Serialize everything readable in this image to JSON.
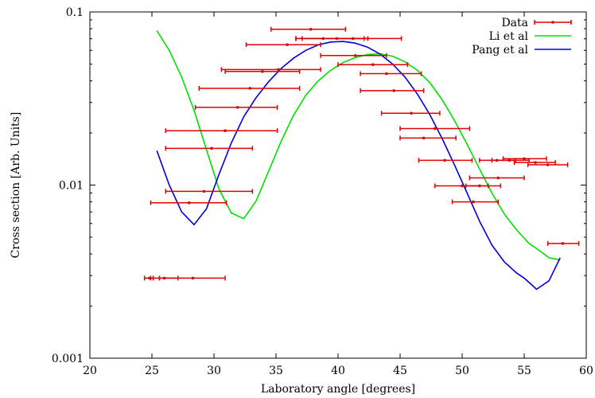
{
  "chart_data": {
    "type": "scatter",
    "title": "",
    "xlabel": "Laboratory angle [degrees]",
    "ylabel": "Cross section [Arb. Units]",
    "xlim": [
      20,
      60
    ],
    "ylim": [
      0.001,
      0.1
    ],
    "yscale": "log",
    "grid": false,
    "legend_position": "top-right",
    "xticks": [
      20,
      25,
      30,
      35,
      40,
      45,
      50,
      55,
      60
    ],
    "xtick_labels": [
      "20",
      "25",
      "30",
      "35",
      "40",
      "45",
      "50",
      "55",
      "60"
    ],
    "yticks": [
      0.001,
      0.01,
      0.1
    ],
    "ytick_labels": [
      "0.001",
      "0.01",
      "0.1"
    ],
    "series": [
      {
        "name": "Data",
        "kind": "errorbar-x",
        "color": "#e00000",
        "points": [
          {
            "x": 24.8,
            "y": 0.0029,
            "xmin": 24.4,
            "xmax": 25.1
          },
          {
            "x": 26.0,
            "y": 0.0029,
            "xmin": 24.9,
            "xmax": 27.1
          },
          {
            "x": 28.3,
            "y": 0.0029,
            "xmin": 25.6,
            "xmax": 30.9
          },
          {
            "x": 28.0,
            "y": 0.0079,
            "xmin": 24.9,
            "xmax": 31.0
          },
          {
            "x": 29.2,
            "y": 0.0092,
            "xmin": 26.1,
            "xmax": 33.1
          },
          {
            "x": 29.8,
            "y": 0.0163,
            "xmin": 26.1,
            "xmax": 33.1
          },
          {
            "x": 30.9,
            "y": 0.0206,
            "xmin": 26.1,
            "xmax": 35.1
          },
          {
            "x": 31.9,
            "y": 0.0281,
            "xmin": 28.5,
            "xmax": 35.1
          },
          {
            "x": 32.9,
            "y": 0.0362,
            "xmin": 28.8,
            "xmax": 36.9
          },
          {
            "x": 33.9,
            "y": 0.0453,
            "xmin": 30.9,
            "xmax": 36.9
          },
          {
            "x": 35.2,
            "y": 0.0465,
            "xmin": 30.6,
            "xmax": 38.6
          },
          {
            "x": 35.9,
            "y": 0.0647,
            "xmin": 32.6,
            "xmax": 38.6
          },
          {
            "x": 37.8,
            "y": 0.0794,
            "xmin": 34.6,
            "xmax": 40.6
          },
          {
            "x": 38.8,
            "y": 0.0702,
            "xmin": 36.6,
            "xmax": 42.1
          },
          {
            "x": 39.9,
            "y": 0.0702,
            "xmin": 36.6,
            "xmax": 42.4
          },
          {
            "x": 41.2,
            "y": 0.0702,
            "xmin": 37.1,
            "xmax": 45.1
          },
          {
            "x": 41.4,
            "y": 0.056,
            "xmin": 38.6,
            "xmax": 43.9
          },
          {
            "x": 42.8,
            "y": 0.0496,
            "xmin": 40.0,
            "xmax": 45.6
          },
          {
            "x": 43.9,
            "y": 0.044,
            "xmin": 41.8,
            "xmax": 46.7
          },
          {
            "x": 44.5,
            "y": 0.0351,
            "xmin": 41.8,
            "xmax": 46.9
          },
          {
            "x": 45.9,
            "y": 0.026,
            "xmin": 43.5,
            "xmax": 48.2
          },
          {
            "x": 47.8,
            "y": 0.0212,
            "xmin": 45.0,
            "xmax": 50.6
          },
          {
            "x": 46.9,
            "y": 0.0187,
            "xmin": 45.0,
            "xmax": 49.5
          },
          {
            "x": 48.6,
            "y": 0.0139,
            "xmin": 46.5,
            "xmax": 50.8
          },
          {
            "x": 52.8,
            "y": 0.0139,
            "xmin": 51.4,
            "xmax": 54.3
          },
          {
            "x": 53.8,
            "y": 0.0139,
            "xmin": 52.4,
            "xmax": 55.4
          },
          {
            "x": 55.0,
            "y": 0.0142,
            "xmin": 53.3,
            "xmax": 56.8
          },
          {
            "x": 56.9,
            "y": 0.0131,
            "xmin": 55.3,
            "xmax": 58.5
          },
          {
            "x": 55.9,
            "y": 0.0135,
            "xmin": 54.2,
            "xmax": 57.5
          },
          {
            "x": 52.9,
            "y": 0.011,
            "xmin": 50.6,
            "xmax": 55.0
          },
          {
            "x": 51.4,
            "y": 0.0099,
            "xmin": 50.3,
            "xmax": 53.1
          },
          {
            "x": 50.0,
            "y": 0.0099,
            "xmin": 47.8,
            "xmax": 52.1
          },
          {
            "x": 50.9,
            "y": 0.008,
            "xmin": 49.2,
            "xmax": 52.9
          },
          {
            "x": 58.1,
            "y": 0.0046,
            "xmin": 56.9,
            "xmax": 59.4
          }
        ]
      },
      {
        "name": "Li et al",
        "kind": "line",
        "color": "#00e000",
        "points": [
          [
            25.4,
            0.078
          ],
          [
            26.4,
            0.06
          ],
          [
            27.4,
            0.042
          ],
          [
            28.4,
            0.027
          ],
          [
            29.4,
            0.016
          ],
          [
            30.4,
            0.0095
          ],
          [
            31.4,
            0.0069
          ],
          [
            32.4,
            0.0064
          ],
          [
            33.4,
            0.0081
          ],
          [
            34.4,
            0.012
          ],
          [
            35.4,
            0.0178
          ],
          [
            36.4,
            0.0252
          ],
          [
            37.4,
            0.033
          ],
          [
            38.4,
            0.04
          ],
          [
            39.4,
            0.046
          ],
          [
            40.4,
            0.051
          ],
          [
            41.4,
            0.0545
          ],
          [
            42.4,
            0.0568
          ],
          [
            43.4,
            0.0573
          ],
          [
            44.4,
            0.0555
          ],
          [
            45.4,
            0.0515
          ],
          [
            46.4,
            0.046
          ],
          [
            47.4,
            0.039
          ],
          [
            48.4,
            0.031
          ],
          [
            49.4,
            0.0235
          ],
          [
            50.4,
            0.0172
          ],
          [
            51.4,
            0.0124
          ],
          [
            52.4,
            0.009
          ],
          [
            53.4,
            0.0068
          ],
          [
            54.4,
            0.0055
          ],
          [
            55.4,
            0.0046
          ],
          [
            56.4,
            0.0041
          ],
          [
            57.0,
            0.0038
          ],
          [
            57.9,
            0.0037
          ]
        ]
      },
      {
        "name": "Pang et al",
        "kind": "line",
        "color": "#0000e0",
        "points": [
          [
            25.4,
            0.0158
          ],
          [
            26.4,
            0.01
          ],
          [
            27.4,
            0.007
          ],
          [
            28.4,
            0.0059
          ],
          [
            29.4,
            0.0073
          ],
          [
            30.4,
            0.0115
          ],
          [
            31.4,
            0.0175
          ],
          [
            32.4,
            0.0248
          ],
          [
            33.4,
            0.032
          ],
          [
            34.4,
            0.0395
          ],
          [
            35.4,
            0.047
          ],
          [
            36.4,
            0.054
          ],
          [
            37.4,
            0.06
          ],
          [
            38.4,
            0.0645
          ],
          [
            39.4,
            0.067
          ],
          [
            40.4,
            0.0675
          ],
          [
            41.4,
            0.066
          ],
          [
            42.4,
            0.0625
          ],
          [
            43.4,
            0.057
          ],
          [
            44.4,
            0.05
          ],
          [
            45.4,
            0.042
          ],
          [
            46.4,
            0.0335
          ],
          [
            47.4,
            0.0255
          ],
          [
            48.4,
            0.0185
          ],
          [
            49.4,
            0.013
          ],
          [
            50.4,
            0.009
          ],
          [
            51.4,
            0.0062
          ],
          [
            52.4,
            0.0045
          ],
          [
            53.4,
            0.0036
          ],
          [
            54.4,
            0.0031
          ],
          [
            55.0,
            0.0029
          ],
          [
            56.0,
            0.0025
          ],
          [
            57.0,
            0.0028
          ],
          [
            57.9,
            0.0038
          ]
        ]
      }
    ]
  }
}
